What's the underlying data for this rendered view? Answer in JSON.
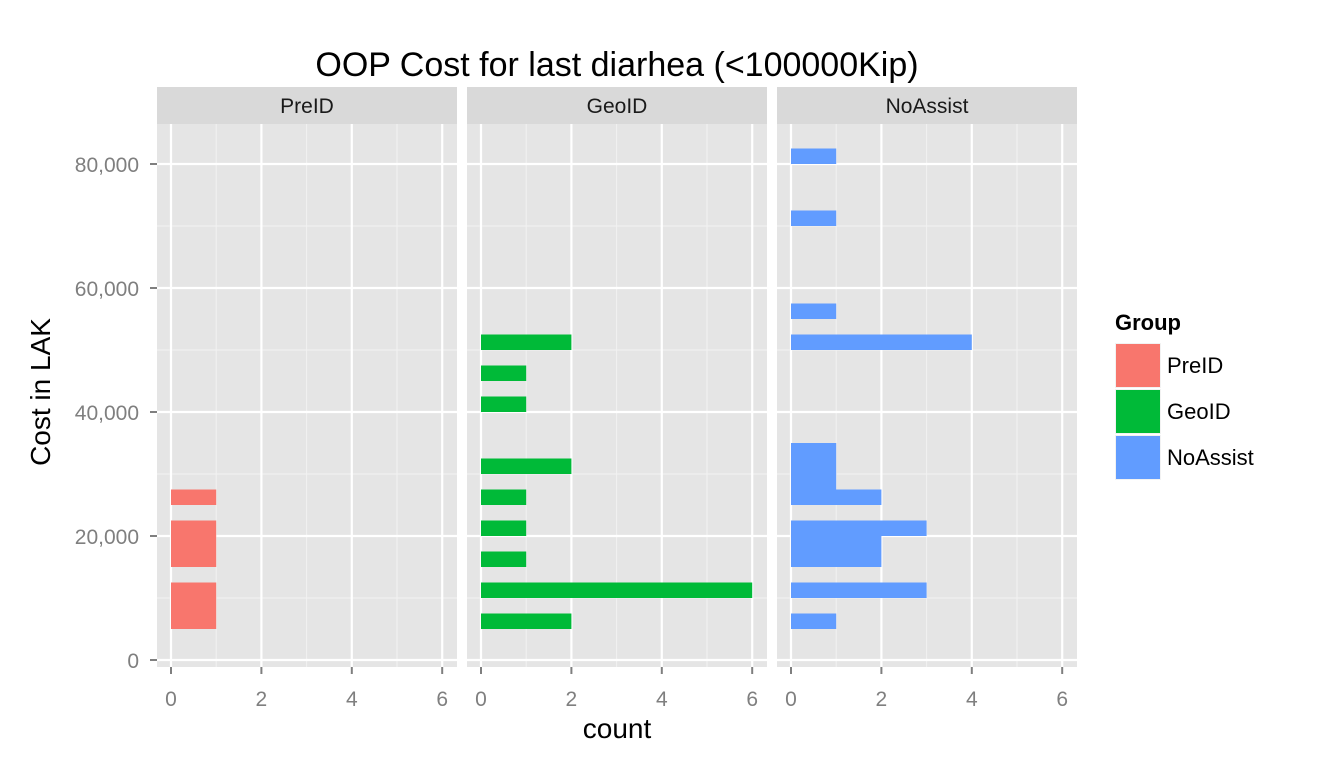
{
  "chart_data": {
    "type": "bar",
    "orientation": "horizontal",
    "title": "OOP Cost for last diarhea (<100000Kip)",
    "xlabel": "count",
    "ylabel": "Cost in LAK",
    "xlim": [
      0,
      6
    ],
    "ylim": [
      0,
      85000
    ],
    "x_ticks": [
      "0",
      "2",
      "4",
      "6"
    ],
    "y_ticks": [
      "0",
      "20,000",
      "40,000",
      "60,000",
      "80,000"
    ],
    "y_tick_values": [
      0,
      20000,
      40000,
      60000,
      80000
    ],
    "bin_width": 2500,
    "grid": true,
    "legend_position": "right",
    "legend": {
      "title": "Group",
      "entries": [
        "PreID",
        "GeoID",
        "NoAssist"
      ]
    },
    "panels": [
      {
        "name": "PreID",
        "color": "#F8766D",
        "bins": [
          {
            "y0": 5000,
            "y1": 7500,
            "count": 1
          },
          {
            "y0": 7500,
            "y1": 10000,
            "count": 1
          },
          {
            "y0": 10000,
            "y1": 12500,
            "count": 1
          },
          {
            "y0": 15000,
            "y1": 17500,
            "count": 1
          },
          {
            "y0": 17500,
            "y1": 20000,
            "count": 1
          },
          {
            "y0": 20000,
            "y1": 22500,
            "count": 1
          },
          {
            "y0": 25000,
            "y1": 27500,
            "count": 1
          }
        ]
      },
      {
        "name": "GeoID",
        "color": "#00BA38",
        "bins": [
          {
            "y0": 5000,
            "y1": 7500,
            "count": 2
          },
          {
            "y0": 10000,
            "y1": 12500,
            "count": 6
          },
          {
            "y0": 15000,
            "y1": 17500,
            "count": 1
          },
          {
            "y0": 20000,
            "y1": 22500,
            "count": 1
          },
          {
            "y0": 25000,
            "y1": 27500,
            "count": 1
          },
          {
            "y0": 30000,
            "y1": 32500,
            "count": 2
          },
          {
            "y0": 40000,
            "y1": 42500,
            "count": 1
          },
          {
            "y0": 45000,
            "y1": 47500,
            "count": 1
          },
          {
            "y0": 50000,
            "y1": 52500,
            "count": 2
          }
        ]
      },
      {
        "name": "NoAssist",
        "color": "#619CFF",
        "bins": [
          {
            "y0": 5000,
            "y1": 7500,
            "count": 1
          },
          {
            "y0": 10000,
            "y1": 12500,
            "count": 3
          },
          {
            "y0": 15000,
            "y1": 17500,
            "count": 2
          },
          {
            "y0": 17500,
            "y1": 20000,
            "count": 2
          },
          {
            "y0": 20000,
            "y1": 22500,
            "count": 3
          },
          {
            "y0": 25000,
            "y1": 27500,
            "count": 2
          },
          {
            "y0": 27500,
            "y1": 30000,
            "count": 1
          },
          {
            "y0": 30000,
            "y1": 32500,
            "count": 1
          },
          {
            "y0": 32500,
            "y1": 35000,
            "count": 1
          },
          {
            "y0": 50000,
            "y1": 52500,
            "count": 4
          },
          {
            "y0": 55000,
            "y1": 57500,
            "count": 1
          },
          {
            "y0": 70000,
            "y1": 72500,
            "count": 1
          },
          {
            "y0": 80000,
            "y1": 82500,
            "count": 1
          }
        ]
      }
    ]
  }
}
